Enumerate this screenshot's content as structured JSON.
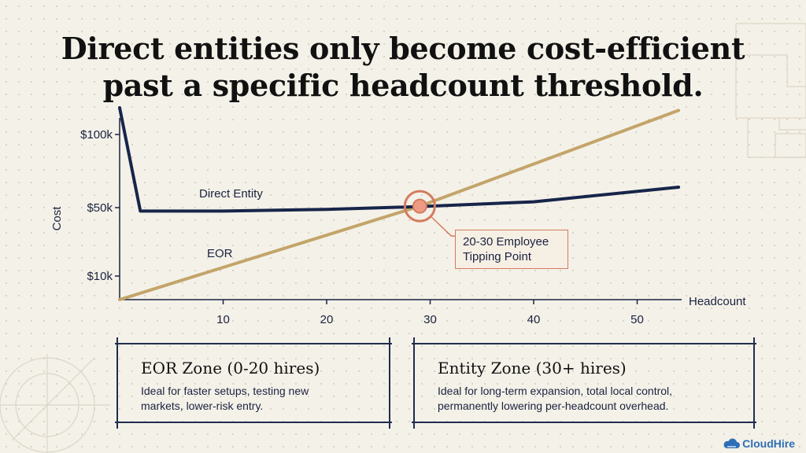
{
  "title": {
    "line1": "Direct entities only become cost-efficient",
    "line2": "past a specific headcount threshold."
  },
  "chart_data": {
    "type": "line",
    "xlabel": "Headcount",
    "ylabel": "Cost",
    "x_ticks": [
      10,
      20,
      30,
      40,
      50
    ],
    "x_range": [
      0,
      54
    ],
    "y_ticks": [
      {
        "label": "$10k",
        "value": 10000
      },
      {
        "label": "$50k",
        "value": 50000
      },
      {
        "label": "$100k",
        "value": 100000
      }
    ],
    "y_scale": "nonlinear",
    "grid": false,
    "series": [
      {
        "name": "Direct Entity",
        "color": "#17254a",
        "points": [
          [
            0,
            120000
          ],
          [
            2,
            48000
          ],
          [
            10,
            48000
          ],
          [
            20,
            49000
          ],
          [
            28,
            50500
          ],
          [
            30,
            51000
          ],
          [
            40,
            54000
          ],
          [
            54,
            64000
          ]
        ]
      },
      {
        "name": "EOR",
        "color": "#c3a46a",
        "points": [
          [
            0,
            0
          ],
          [
            29,
            51000
          ],
          [
            54,
            118000
          ]
        ]
      }
    ],
    "annotation": {
      "x": 29,
      "y": 51000,
      "line1": "20-30 Employee",
      "line2": "Tipping Point",
      "color": "#d27c5f"
    }
  },
  "zones": [
    {
      "title": "EOR Zone (0-20 hires)",
      "line1": "Ideal for faster setups, testing new",
      "line2": "markets, lower-risk entry."
    },
    {
      "title": "Entity Zone (30+ hires)",
      "line1": "Ideal for long-term expansion, total local control,",
      "line2": "permanently lowering per-headcount overhead."
    }
  ],
  "logo": {
    "text": "CloudHire",
    "icon": "cloud-icon",
    "color": "#2f6fb7"
  }
}
